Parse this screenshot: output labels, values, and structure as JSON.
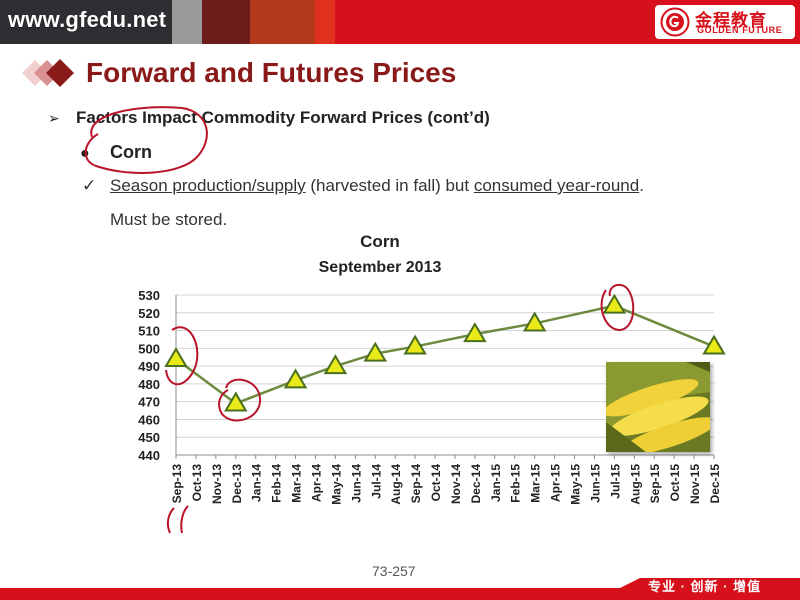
{
  "header": {
    "site_url": "www.gfedu.net",
    "logo": {
      "cn": "金程教育",
      "en": "GOLDEN FUTURE"
    },
    "colors": {
      "bar": "#d7111b",
      "title": "#8a1a1a"
    }
  },
  "slide": {
    "title": "Forward and Futures Prices",
    "bullet1": {
      "icon": "arrow-bullet-icon",
      "glyph": "➢",
      "text": "Factors Impact Commodity Forward Prices (cont’d)"
    },
    "bullet2": {
      "icon": "dot-bullet-icon",
      "glyph": "●",
      "text": "Corn"
    },
    "bullet3": {
      "icon": "check-bullet-icon",
      "glyph": "✓",
      "part1": "Season production/supply",
      "part2": " (harvested in fall) but ",
      "part3": "consumed year-round",
      "part4": ".",
      "line2": "Must be stored."
    }
  },
  "chart_data": {
    "type": "line",
    "title": "Corn",
    "subtitle": "September 2013",
    "xlabel": "",
    "ylabel": "",
    "ylim": [
      440,
      530
    ],
    "yticks": [
      440,
      450,
      460,
      470,
      480,
      490,
      500,
      510,
      520,
      530
    ],
    "categories": [
      "Sep-13",
      "Oct-13",
      "Nov-13",
      "Dec-13",
      "Jan-14",
      "Feb-14",
      "Mar-14",
      "Apr-14",
      "May-14",
      "Jun-14",
      "Jul-14",
      "Aug-14",
      "Sep-14",
      "Oct-14",
      "Nov-14",
      "Dec-14",
      "Jan-15",
      "Feb-15",
      "Mar-15",
      "Apr-15",
      "May-15",
      "Jun-15",
      "Jul-15",
      "Aug-15",
      "Sep-15",
      "Oct-15",
      "Nov-15",
      "Dec-15"
    ],
    "series": [
      {
        "values": [
          494,
          null,
          null,
          469,
          null,
          null,
          482,
          null,
          490,
          null,
          497,
          null,
          501,
          null,
          null,
          508,
          null,
          null,
          514,
          null,
          null,
          null,
          524,
          null,
          null,
          null,
          null,
          501
        ]
      }
    ],
    "grid": true,
    "legend": "none",
    "colors": {
      "line": "#6d8a3e",
      "marker_fill": "#eaea1a",
      "marker_stroke": "#4a6e1f"
    }
  },
  "footer": {
    "page_number": "73-257",
    "slogan": "专业 · 创新 · 增值"
  }
}
